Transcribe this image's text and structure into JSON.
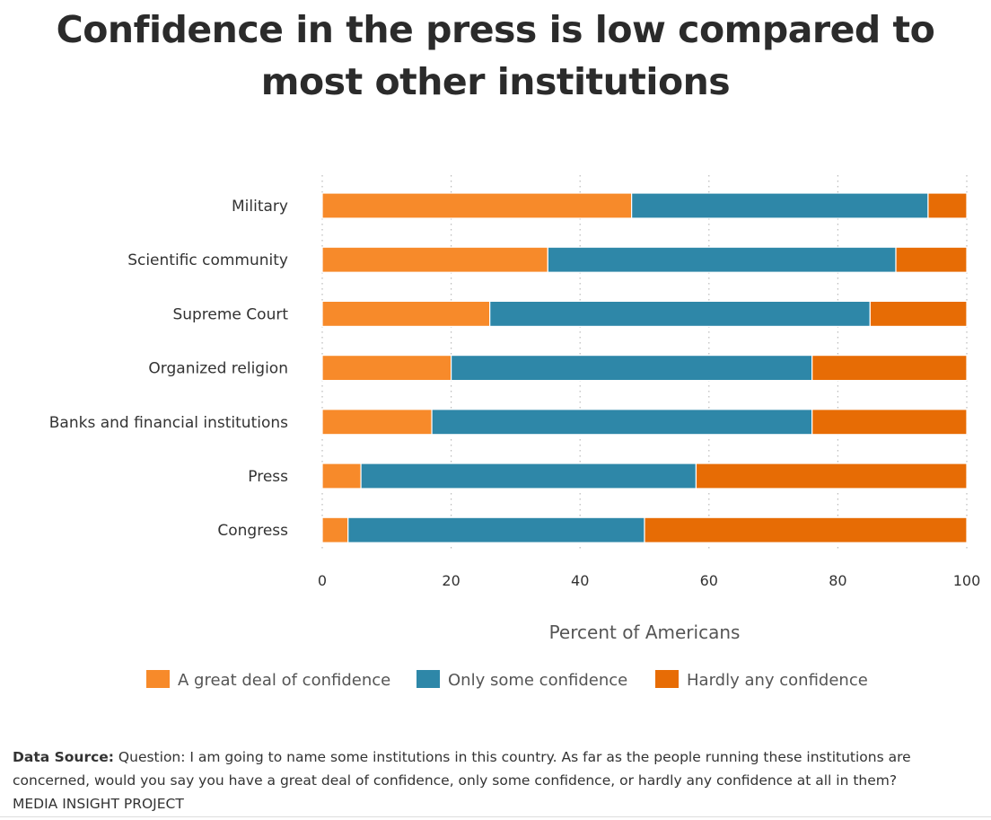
{
  "chart_data": {
    "type": "bar",
    "orientation": "horizontal",
    "stacked": true,
    "title": "Confidence in the press is low compared to most other institutions",
    "categories": [
      "Military",
      "Scientific community",
      "Supreme Court",
      "Organized religion",
      "Banks and financial institutions",
      "Press",
      "Congress"
    ],
    "series": [
      {
        "name": "A great deal of confidence",
        "color": "#f78a2a",
        "values": [
          48,
          35,
          26,
          20,
          17,
          6,
          4
        ]
      },
      {
        "name": "Only some confidence",
        "color": "#2e87a8",
        "values": [
          46,
          54,
          59,
          56,
          59,
          52,
          46
        ]
      },
      {
        "name": "Hardly any confidence",
        "color": "#e76c05",
        "values": [
          6,
          11,
          15,
          24,
          24,
          42,
          50
        ]
      }
    ],
    "xlabel": "Percent of Americans",
    "ylabel": "",
    "xlim": [
      0,
      100
    ],
    "xticks": [
      "0",
      "20",
      "40",
      "60",
      "80",
      "100"
    ],
    "grid": "vertical dotted",
    "legend": "bottom"
  },
  "footer": {
    "source_label": "Data Source:",
    "source_text": "Question: I am going to name some institutions in this country. As far as the people running these institutions are concerned, would you say you have a great deal of confidence, only some confidence, or hardly any confidence at all in them?",
    "credit": "MEDIA INSIGHT PROJECT"
  }
}
